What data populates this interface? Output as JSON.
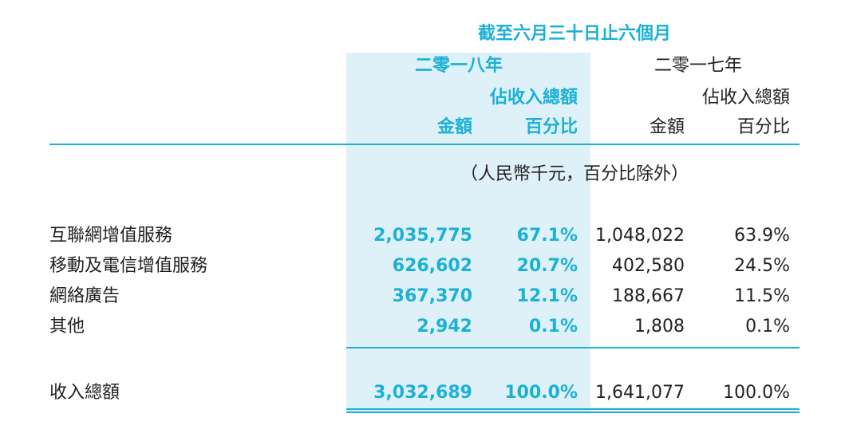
{
  "header": {
    "period": "截至六月三十日止六個月",
    "years": [
      {
        "label": "二零一八年",
        "pct_label": "佔收入總額",
        "amount_label": "金額",
        "percentage_label": "百分比"
      },
      {
        "label": "二零一七年",
        "pct_label": "佔收入總額",
        "amount_label": "金額",
        "percentage_label": "百分比"
      }
    ],
    "unit_note": "（人民幣千元，百分比除外）"
  },
  "rows": [
    {
      "label": "互聯網增值服務",
      "amount_2018": "2,035,775",
      "pct_2018": "67.1%",
      "amount_2017": "1,048,022",
      "pct_2017": "63.9%"
    },
    {
      "label": "移動及電信增值服務",
      "amount_2018": "626,602",
      "pct_2018": "20.7%",
      "amount_2017": "402,580",
      "pct_2017": "24.5%"
    },
    {
      "label": "網絡廣告",
      "amount_2018": "367,370",
      "pct_2018": "12.1%",
      "amount_2017": "188,667",
      "pct_2017": "11.5%"
    },
    {
      "label": "其他",
      "amount_2018": "2,942",
      "pct_2018": "0.1%",
      "amount_2017": "1,808",
      "pct_2017": "0.1%"
    }
  ],
  "total": {
    "label": "收入總額",
    "amount_2018": "3,032,689",
    "pct_2018": "100.0%",
    "amount_2017": "1,641,077",
    "pct_2017": "100.0%"
  },
  "colors": {
    "accent": "#1bb1d6",
    "highlight_band": "#dff1f8",
    "text": "#231f20"
  }
}
